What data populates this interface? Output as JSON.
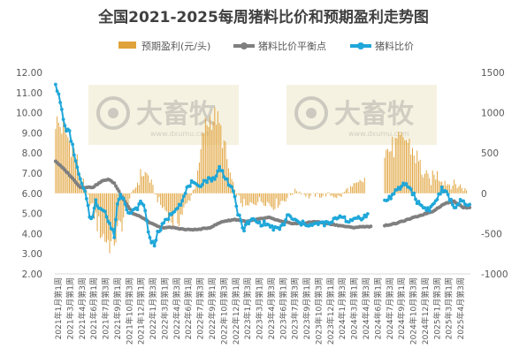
{
  "chart_data": {
    "type": "bar+line",
    "title": "全国2021-2025每周猪料比价和预期盈利走势图",
    "legend": {
      "placement": "top",
      "items": [
        {
          "label": "预期盈利(元/头)",
          "kind": "bar",
          "color": "#E0A23A"
        },
        {
          "label": "猪料比价平衡点",
          "kind": "line",
          "color": "#7F7F7F"
        },
        {
          "label": "猪料比价",
          "kind": "line",
          "color": "#1FA7D9"
        }
      ]
    },
    "y_left": {
      "min": 2,
      "max": 12,
      "step": 1,
      "ticks": [
        "2.00",
        "3.00",
        "4.00",
        "5.00",
        "6.00",
        "7.00",
        "8.00",
        "9.00",
        "10.00",
        "11.00",
        "12.00"
      ]
    },
    "y_right": {
      "min": -1000,
      "max": 1500,
      "step": 500,
      "ticks": [
        "-1000",
        "-500",
        "0",
        "500",
        "1000",
        "1500"
      ]
    },
    "x_labels": [
      "2021年1月第1周",
      "2021年3月第1周",
      "2021年4月第3周",
      "2021年6月第1周",
      "2021年7月第3周",
      "2021年9月第1周",
      "2021年10月第3周",
      "2021年12月第1周",
      "2022年1月第3周",
      "2022年3月第1周",
      "2022年4月第3周",
      "2022年6月第1周",
      "2022年7月第3周",
      "2022年9月第1周",
      "2022年10月第3周",
      "2022年12月第1周",
      "2023年1月第3周",
      "2023年3月第1周",
      "2023年4月第3周",
      "2023年6月第1周",
      "2023年7月第3周",
      "2023年9月第1周",
      "2023年10月第3周",
      "2023年12月第1周",
      "2024年1月第3周",
      "2024年3月第1周",
      "2024年4月第3周",
      "2024年6月第1周",
      "2024年7月第3周",
      "2024年9月第1周",
      "2024年10月第3周",
      "2024年12月第1周",
      "2025年1月第3周",
      "2025年3月第1周",
      "2025年4月第3周"
    ],
    "watermark": {
      "brand": "大畜牧",
      "url": "www.dxumu.com"
    },
    "series_profit": {
      "name": "预期盈利(元/头)",
      "anchors": [
        [
          0,
          900
        ],
        [
          6,
          770
        ],
        [
          12,
          520
        ],
        [
          16,
          230
        ],
        [
          20,
          10
        ],
        [
          23,
          -150
        ],
        [
          28,
          -420
        ],
        [
          32,
          -560
        ],
        [
          36,
          -640
        ],
        [
          40,
          -500
        ],
        [
          44,
          -300
        ],
        [
          48,
          -60
        ],
        [
          52,
          90
        ],
        [
          56,
          260
        ],
        [
          60,
          220
        ],
        [
          64,
          10
        ],
        [
          68,
          -150
        ],
        [
          72,
          -220
        ],
        [
          76,
          -350
        ],
        [
          80,
          -300
        ],
        [
          84,
          -180
        ],
        [
          88,
          -20
        ],
        [
          92,
          200
        ],
        [
          96,
          790
        ],
        [
          100,
          930
        ],
        [
          104,
          950
        ],
        [
          108,
          700
        ],
        [
          112,
          300
        ],
        [
          116,
          20
        ],
        [
          120,
          -100
        ],
        [
          124,
          -190
        ],
        [
          128,
          -110
        ],
        [
          132,
          -90
        ],
        [
          136,
          -100
        ],
        [
          140,
          -150
        ],
        [
          144,
          -120
        ],
        [
          148,
          -80
        ],
        [
          152,
          -20
        ],
        [
          156,
          40
        ],
        [
          160,
          0
        ],
        [
          164,
          -40
        ],
        [
          168,
          -20
        ],
        [
          172,
          -30
        ],
        [
          176,
          -10
        ],
        [
          180,
          -30
        ],
        [
          184,
          -50
        ],
        [
          188,
          40
        ],
        [
          192,
          70
        ],
        [
          196,
          110
        ],
        [
          200,
          170
        ],
        [
          204,
          null
        ],
        [
          212,
          null
        ],
        [
          213,
          520
        ],
        [
          218,
          560
        ],
        [
          222,
          610
        ],
        [
          226,
          690
        ],
        [
          230,
          570
        ],
        [
          234,
          430
        ],
        [
          238,
          250
        ],
        [
          242,
          150
        ],
        [
          246,
          240
        ],
        [
          250,
          190
        ],
        [
          254,
          120
        ],
        [
          258,
          110
        ],
        [
          262,
          90
        ],
        [
          266,
          30
        ]
      ]
    },
    "series_balance": {
      "name": "猪料比价平衡点",
      "anchors": [
        [
          0,
          7.6
        ],
        [
          8,
          7.0
        ],
        [
          16,
          6.3
        ],
        [
          24,
          6.3
        ],
        [
          30,
          6.6
        ],
        [
          34,
          6.7
        ],
        [
          38,
          6.5
        ],
        [
          44,
          5.7
        ],
        [
          50,
          5.0
        ],
        [
          56,
          4.8
        ],
        [
          62,
          4.5
        ],
        [
          68,
          4.3
        ],
        [
          76,
          4.3
        ],
        [
          84,
          4.2
        ],
        [
          92,
          4.2
        ],
        [
          100,
          4.3
        ],
        [
          108,
          4.6
        ],
        [
          116,
          4.7
        ],
        [
          124,
          4.6
        ],
        [
          130,
          4.7
        ],
        [
          138,
          4.8
        ],
        [
          146,
          4.6
        ],
        [
          154,
          4.5
        ],
        [
          160,
          4.5
        ],
        [
          168,
          4.6
        ],
        [
          176,
          4.5
        ],
        [
          184,
          4.4
        ],
        [
          192,
          4.3
        ],
        [
          200,
          4.35
        ],
        [
          204,
          4.35
        ],
        [
          205,
          null
        ],
        [
          212,
          null
        ],
        [
          213,
          4.4
        ],
        [
          220,
          4.5
        ],
        [
          228,
          4.7
        ],
        [
          236,
          4.9
        ],
        [
          244,
          5.1
        ],
        [
          252,
          5.5
        ],
        [
          258,
          5.6
        ],
        [
          264,
          5.3
        ],
        [
          268,
          5.3
        ]
      ]
    },
    "series_ratio": {
      "name": "猪料比价",
      "anchors": [
        [
          0,
          11.5
        ],
        [
          3,
          10.5
        ],
        [
          6,
          9.3
        ],
        [
          9,
          9.0
        ],
        [
          12,
          8.0
        ],
        [
          14,
          7.2
        ],
        [
          17,
          6.4
        ],
        [
          20,
          5.8
        ],
        [
          22,
          4.9
        ],
        [
          24,
          4.8
        ],
        [
          26,
          5.6
        ],
        [
          28,
          5.3
        ],
        [
          30,
          5.3
        ],
        [
          32,
          5.1
        ],
        [
          34,
          4.6
        ],
        [
          36,
          4.3
        ],
        [
          38,
          3.9
        ],
        [
          40,
          5.5
        ],
        [
          42,
          5.9
        ],
        [
          44,
          5.8
        ],
        [
          46,
          5.3
        ],
        [
          48,
          5.0
        ],
        [
          52,
          5.2
        ],
        [
          56,
          5.6
        ],
        [
          58,
          5.1
        ],
        [
          60,
          4.1
        ],
        [
          62,
          3.6
        ],
        [
          64,
          3.5
        ],
        [
          66,
          4.0
        ],
        [
          70,
          4.5
        ],
        [
          74,
          4.9
        ],
        [
          78,
          5.3
        ],
        [
          82,
          5.6
        ],
        [
          86,
          6.4
        ],
        [
          88,
          6.5
        ],
        [
          92,
          6.3
        ],
        [
          96,
          6.6
        ],
        [
          100,
          6.7
        ],
        [
          104,
          6.8
        ],
        [
          106,
          7.3
        ],
        [
          110,
          6.8
        ],
        [
          114,
          6.2
        ],
        [
          116,
          5.8
        ],
        [
          118,
          5.0
        ],
        [
          120,
          4.6
        ],
        [
          122,
          4.2
        ],
        [
          124,
          4.5
        ],
        [
          128,
          4.7
        ],
        [
          132,
          4.5
        ],
        [
          136,
          4.5
        ],
        [
          140,
          4.3
        ],
        [
          144,
          4.2
        ],
        [
          148,
          4.5
        ],
        [
          150,
          4.9
        ],
        [
          154,
          4.7
        ],
        [
          158,
          4.5
        ],
        [
          162,
          4.5
        ],
        [
          166,
          4.4
        ],
        [
          170,
          4.5
        ],
        [
          174,
          4.5
        ],
        [
          178,
          4.5
        ],
        [
          182,
          4.8
        ],
        [
          186,
          4.9
        ],
        [
          190,
          4.5
        ],
        [
          194,
          4.8
        ],
        [
          198,
          4.8
        ],
        [
          202,
          4.9
        ],
        [
          204,
          null
        ],
        [
          212,
          null
        ],
        [
          213,
          5.6
        ],
        [
          218,
          5.9
        ],
        [
          222,
          6.2
        ],
        [
          226,
          6.5
        ],
        [
          230,
          6.2
        ],
        [
          234,
          5.6
        ],
        [
          238,
          5.3
        ],
        [
          242,
          5.2
        ],
        [
          246,
          5.6
        ],
        [
          250,
          6.2
        ],
        [
          254,
          5.9
        ],
        [
          258,
          5.3
        ],
        [
          262,
          5.6
        ],
        [
          266,
          5.4
        ],
        [
          268,
          5.4
        ]
      ]
    }
  }
}
